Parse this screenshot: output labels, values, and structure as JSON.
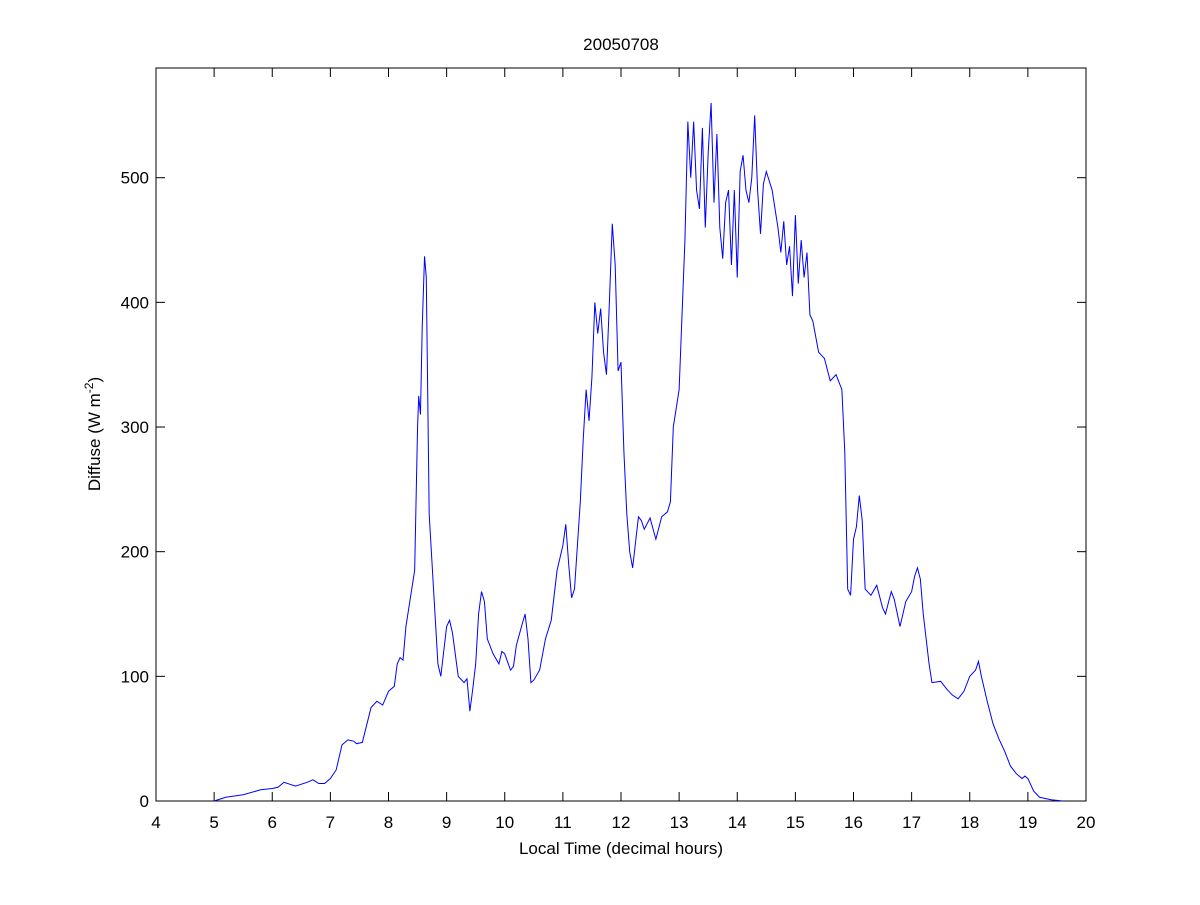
{
  "chart_data": {
    "type": "line",
    "title": "20050708",
    "xlabel": "Local Time (decimal hours)",
    "ylabel": {
      "text": "Diffuse (W m",
      "superscript": "-2",
      "suffix": ")"
    },
    "color": "#0000ff",
    "xlim": [
      4,
      20
    ],
    "xticks": [
      4,
      5,
      6,
      7,
      8,
      9,
      10,
      11,
      12,
      13,
      14,
      15,
      16,
      17,
      18,
      19,
      20
    ],
    "ylim": [
      0,
      588
    ],
    "yticks": [
      0,
      100,
      200,
      300,
      400,
      500
    ],
    "x": [
      5.0,
      5.2,
      5.5,
      5.8,
      6.0,
      6.1,
      6.2,
      6.4,
      6.6,
      6.7,
      6.8,
      6.9,
      7.0,
      7.1,
      7.2,
      7.3,
      7.4,
      7.45,
      7.55,
      7.7,
      7.8,
      7.9,
      8.0,
      8.1,
      8.15,
      8.2,
      8.25,
      8.3,
      8.4,
      8.45,
      8.5,
      8.52,
      8.55,
      8.58,
      8.62,
      8.65,
      8.7,
      8.8,
      8.85,
      8.9,
      9.0,
      9.05,
      9.1,
      9.2,
      9.3,
      9.35,
      9.4,
      9.45,
      9.5,
      9.55,
      9.6,
      9.65,
      9.7,
      9.8,
      9.9,
      9.95,
      10.0,
      10.1,
      10.15,
      10.2,
      10.3,
      10.35,
      10.4,
      10.45,
      10.5,
      10.6,
      10.7,
      10.8,
      10.9,
      11.0,
      11.05,
      11.1,
      11.15,
      11.2,
      11.3,
      11.35,
      11.4,
      11.45,
      11.5,
      11.55,
      11.6,
      11.65,
      11.7,
      11.75,
      11.8,
      11.85,
      11.9,
      11.95,
      12.0,
      12.05,
      12.1,
      12.15,
      12.2,
      12.3,
      12.35,
      12.4,
      12.5,
      12.6,
      12.7,
      12.8,
      12.85,
      12.9,
      13.0,
      13.1,
      13.15,
      13.2,
      13.25,
      13.3,
      13.35,
      13.4,
      13.45,
      13.5,
      13.55,
      13.6,
      13.65,
      13.7,
      13.75,
      13.8,
      13.85,
      13.9,
      13.95,
      14.0,
      14.05,
      14.1,
      14.15,
      14.2,
      14.25,
      14.3,
      14.35,
      14.4,
      14.45,
      14.5,
      14.6,
      14.7,
      14.75,
      14.8,
      14.85,
      14.9,
      14.95,
      15.0,
      15.05,
      15.1,
      15.15,
      15.2,
      15.25,
      15.3,
      15.4,
      15.5,
      15.6,
      15.7,
      15.8,
      15.85,
      15.9,
      15.95,
      16.0,
      16.05,
      16.1,
      16.15,
      16.2,
      16.3,
      16.4,
      16.5,
      16.55,
      16.65,
      16.7,
      16.8,
      16.9,
      17.0,
      17.05,
      17.1,
      17.15,
      17.2,
      17.3,
      17.35,
      17.5,
      17.6,
      17.7,
      17.8,
      17.9,
      18.0,
      18.1,
      18.15,
      18.2,
      18.3,
      18.4,
      18.5,
      18.6,
      18.7,
      18.8,
      18.9,
      18.95,
      19.0,
      19.1,
      19.2,
      19.4,
      19.6
    ],
    "values": [
      0,
      3,
      5,
      9,
      10,
      11,
      15,
      12,
      15,
      17,
      14,
      14,
      18,
      25,
      45,
      49,
      48,
      46,
      47,
      75,
      80,
      77,
      88,
      92,
      110,
      115,
      113,
      140,
      170,
      185,
      300,
      325,
      310,
      380,
      437,
      420,
      230,
      150,
      110,
      100,
      140,
      145,
      135,
      100,
      95,
      98,
      72,
      90,
      110,
      150,
      168,
      160,
      130,
      118,
      110,
      120,
      118,
      105,
      108,
      125,
      142,
      150,
      130,
      95,
      97,
      105,
      130,
      145,
      185,
      205,
      222,
      190,
      163,
      170,
      240,
      290,
      330,
      305,
      340,
      400,
      375,
      395,
      360,
      342,
      400,
      463,
      430,
      345,
      352,
      280,
      230,
      200,
      187,
      228,
      225,
      218,
      227,
      210,
      228,
      232,
      240,
      300,
      330,
      450,
      545,
      500,
      545,
      490,
      475,
      540,
      460,
      520,
      560,
      480,
      535,
      460,
      435,
      480,
      490,
      430,
      490,
      420,
      505,
      518,
      490,
      480,
      500,
      550,
      490,
      455,
      495,
      505,
      490,
      460,
      440,
      465,
      430,
      445,
      405,
      470,
      415,
      450,
      420,
      440,
      390,
      385,
      360,
      355,
      337,
      342,
      330,
      280,
      170,
      165,
      210,
      220,
      245,
      225,
      170,
      165,
      173,
      155,
      150,
      168,
      162,
      140,
      160,
      168,
      180,
      187,
      178,
      150,
      110,
      95,
      96,
      90,
      85,
      82,
      88,
      100,
      105,
      112,
      100,
      80,
      62,
      50,
      40,
      28,
      22,
      18,
      20,
      18,
      8,
      3,
      1,
      0
    ]
  }
}
